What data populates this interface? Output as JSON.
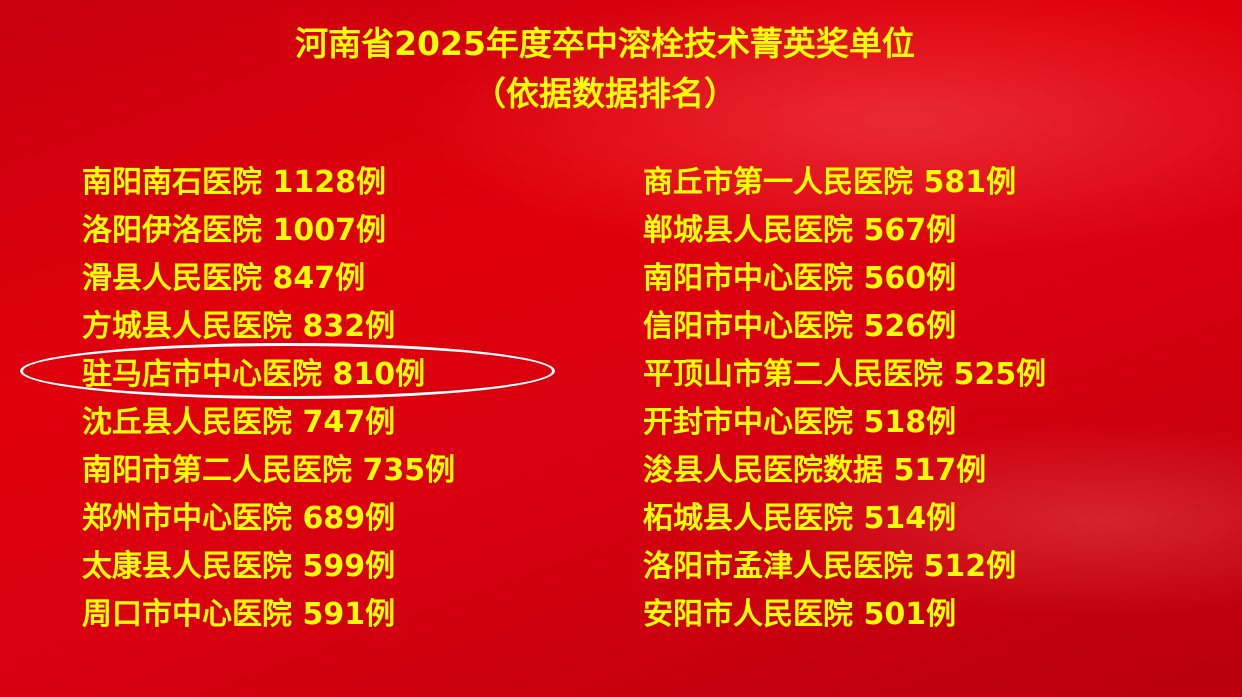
{
  "title": "河南省2025年度卒中溶栓技术菁英奖单位",
  "subtitle": "（依据数据排名）",
  "colors": {
    "text": "#ffff00",
    "background": "#d8000e",
    "highlight_ellipse": "#ffffff"
  },
  "highlighted_index": 4,
  "left_column": [
    "南阳南石医院 1128例",
    "洛阳伊洛医院 1007例",
    "滑县人民医院 847例",
    "方城县人民医院 832例",
    "驻马店市中心医院 810例",
    "沈丘县人民医院 747例",
    "南阳市第二人民医院 735例",
    "郑州市中心医院 689例",
    "太康县人民医院 599例",
    "周口市中心医院 591例"
  ],
  "right_column": [
    "商丘市第一人民医院 581例",
    "郸城县人民医院 567例",
    "南阳市中心医院 560例",
    "信阳市中心医院 526例",
    "平顶山市第二人民医院 525例",
    "开封市中心医院 518例",
    "浚县人民医院数据 517例",
    "柘城县人民医院 514例",
    "洛阳市孟津人民医院 512例",
    "安阳市人民医院 501例"
  ]
}
